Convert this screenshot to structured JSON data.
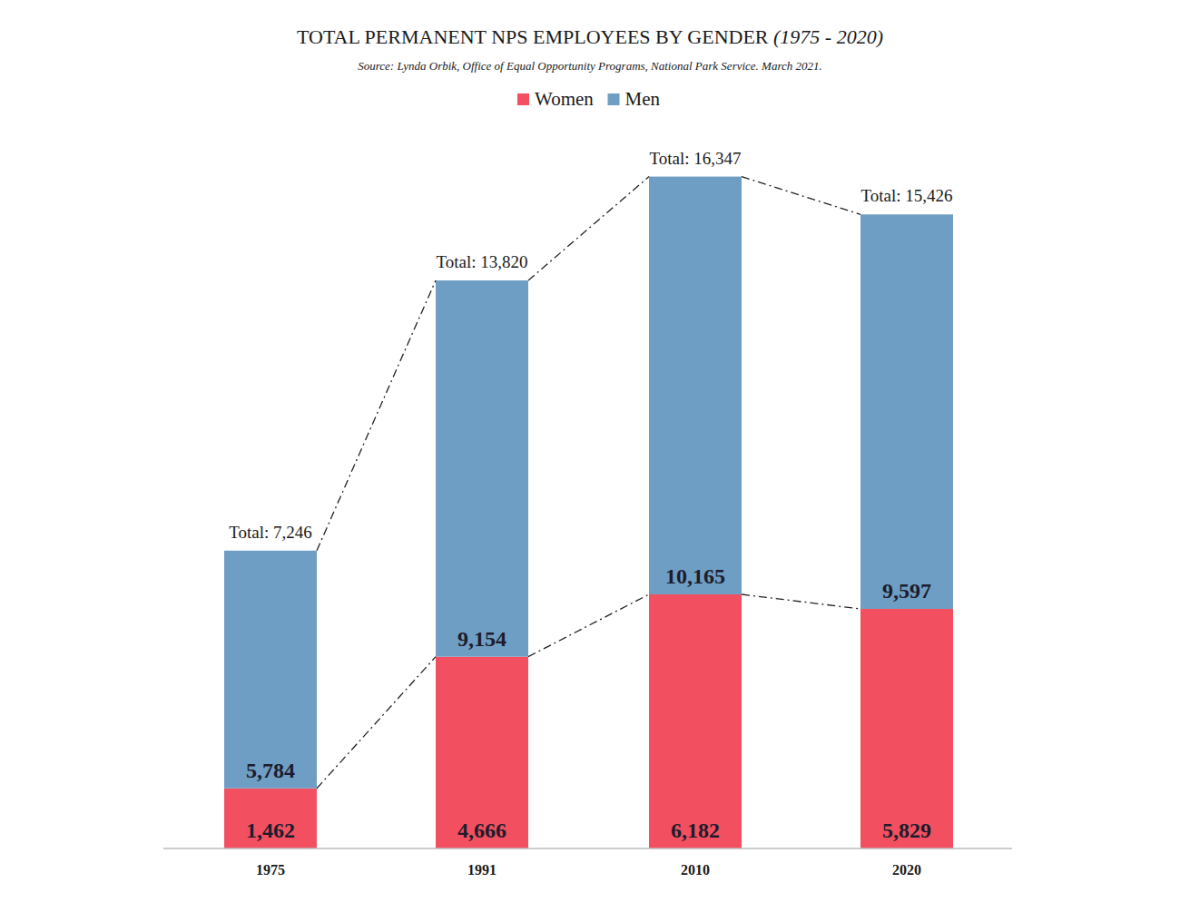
{
  "chart_data": {
    "type": "bar",
    "stacked": true,
    "data_labels": true,
    "tick_labels": "x",
    "legend": "top",
    "grid": false,
    "title": "TOTAL PERMANENT NPS EMPLOYEES BY GENDER (1975 - 2020)",
    "subtitle": "Source: Lynda Orbik, Office of Equal Opportunity Programs, National Park Service. March 2021.",
    "categories": [
      "1975",
      "1991",
      "2010",
      "2020"
    ],
    "ylim": [
      0,
      17000
    ],
    "series": [
      {
        "name": "Women",
        "color": "#f25060",
        "values": [
          1462,
          4666,
          6182,
          5829
        ],
        "value_labels": [
          "1,462",
          "4,666",
          "6,182",
          "5,829"
        ]
      },
      {
        "name": "Men",
        "color": "#6f9ec4",
        "values": [
          5784,
          9154,
          10165,
          9597
        ],
        "value_labels": [
          "5,784",
          "9,154",
          "10,165",
          "9,597"
        ]
      }
    ],
    "totals": [
      7246,
      13820,
      16347,
      15426
    ],
    "total_labels": [
      "Total: 7,246",
      "Total: 13,820",
      "Total: 16,347",
      "Total: 15,426"
    ]
  }
}
